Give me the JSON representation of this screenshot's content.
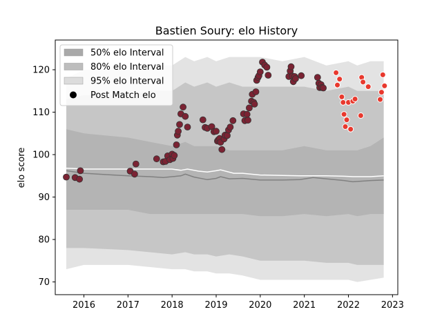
{
  "chart_data": {
    "type": "scatter",
    "title": "Bastien Soury: elo History",
    "xlabel": "",
    "ylabel": "elo score",
    "xlim": [
      2015.35,
      2023.12
    ],
    "ylim": [
      67,
      127
    ],
    "x_ticks": [
      2016,
      2017,
      2018,
      2019,
      2020,
      2021,
      2022,
      2023
    ],
    "x_tick_labels": [
      "2016",
      "2017",
      "2018",
      "2019",
      "2020",
      "2021",
      "2022",
      "2023"
    ],
    "y_ticks": [
      70,
      80,
      90,
      100,
      110,
      120
    ],
    "y_tick_labels": [
      "70",
      "80",
      "90",
      "100",
      "110",
      "120"
    ],
    "grid": false,
    "legend": {
      "placement": "top-left",
      "entries": [
        {
          "label": "50% elo Interval",
          "color": "#a9a9a9",
          "kind": "patch"
        },
        {
          "label": "80% elo Interval",
          "color": "#bdbdbd",
          "kind": "patch"
        },
        {
          "label": "95% elo Interval",
          "color": "#dcdcdc",
          "kind": "patch"
        },
        {
          "label": "Post Match elo",
          "color": "#000000",
          "kind": "marker"
        }
      ]
    },
    "colors": {
      "band_95": "#e3e3e3",
      "band_80": "#c6c6c6",
      "band_50": "#b4b4b4",
      "median_line": "#808080",
      "mean_line": "#ffffff",
      "point_old": "#7b2333",
      "point_recent": "#e8392e"
    },
    "bands": {
      "x": [
        2015.6,
        2016.0,
        2017.0,
        2017.5,
        2018.0,
        2018.3,
        2018.5,
        2018.8,
        2019.0,
        2019.3,
        2019.6,
        2020.0,
        2020.5,
        2021.0,
        2021.5,
        2022.0,
        2022.2,
        2022.5,
        2022.8
      ],
      "p95_upper": [
        118,
        120,
        120,
        121,
        121,
        123,
        122,
        123,
        122,
        123,
        123,
        123,
        122,
        123,
        121,
        122,
        121,
        122,
        122
      ],
      "p80_upper": [
        113,
        114,
        114,
        115,
        115,
        117,
        116,
        117,
        116,
        117,
        116,
        116,
        116,
        116,
        115,
        116,
        115,
        115,
        115
      ],
      "p50_upper": [
        106,
        105,
        104,
        103,
        102,
        103,
        102,
        102,
        102,
        101,
        101,
        101,
        101,
        102,
        101,
        101,
        101,
        102,
        104
      ],
      "p50_lower": [
        87,
        87,
        87,
        86,
        86,
        86,
        86,
        86,
        86,
        86,
        86,
        85.5,
        85.5,
        86,
        85.5,
        86,
        85.5,
        86,
        86
      ],
      "p80_lower": [
        78,
        78,
        77.5,
        77,
        76.5,
        77,
        76.5,
        76.5,
        76,
        76.5,
        76,
        75,
        75,
        75,
        74.5,
        74.5,
        74,
        74,
        74
      ],
      "p95_lower": [
        73,
        74,
        74,
        73.5,
        73,
        73,
        72.5,
        72.5,
        72,
        72,
        71.5,
        70.5,
        70.5,
        70.5,
        70.5,
        70.5,
        70,
        70.5,
        71
      ]
    },
    "median_line": {
      "x": [
        2015.6,
        2016.0,
        2016.5,
        2017.0,
        2017.5,
        2017.8,
        2018.0,
        2018.2,
        2018.3,
        2018.5,
        2018.8,
        2019.0,
        2019.1,
        2019.3,
        2019.6,
        2020.0,
        2020.5,
        2020.9,
        2021.2,
        2021.6,
        2021.9,
        2022.1,
        2022.5,
        2022.8
      ],
      "y": [
        96.2,
        95.6,
        95.3,
        95.0,
        94.8,
        94.6,
        94.8,
        95.0,
        95.4,
        94.7,
        94.1,
        94.4,
        94.8,
        94.3,
        94.4,
        94.0,
        94.0,
        94.1,
        94.6,
        94.2,
        93.9,
        93.6,
        93.9,
        94.0
      ]
    },
    "mean_line": {
      "x": [
        2015.6,
        2015.8,
        2016.0,
        2016.5,
        2017.0,
        2017.5,
        2018.0,
        2018.2,
        2018.35,
        2018.6,
        2018.8,
        2019.0,
        2019.1,
        2019.4,
        2019.6,
        2020.0,
        2020.5,
        2020.9,
        2021.2,
        2021.5,
        2021.9,
        2022.1,
        2022.5,
        2022.8
      ],
      "y": [
        96.8,
        96.7,
        96.6,
        96.6,
        96.6,
        96.6,
        96.6,
        96.3,
        96.6,
        96.1,
        95.9,
        96.2,
        96.4,
        95.6,
        95.6,
        95.2,
        95.1,
        95.0,
        95.0,
        95.0,
        94.9,
        94.8,
        94.8,
        95.0
      ]
    },
    "post_match_points_early": {
      "x": [
        2015.6,
        2015.8,
        2015.9,
        2015.92,
        2017.05,
        2017.15,
        2017.18,
        2017.65,
        2017.8,
        2017.85,
        2017.9,
        2017.95,
        2018.0,
        2018.02,
        2018.05,
        2018.1,
        2018.12,
        2018.14,
        2018.17,
        2018.2,
        2018.25,
        2018.3,
        2018.35,
        2018.7,
        2018.75,
        2018.8,
        2018.9,
        2018.95,
        2019.0,
        2019.03,
        2019.05,
        2019.08,
        2019.1,
        2019.13,
        2019.18,
        2019.2,
        2019.25,
        2019.28,
        2019.32,
        2019.38,
        2019.62,
        2019.65,
        2019.7,
        2019.72,
        2019.75,
        2019.8,
        2019.82,
        2019.85,
        2019.87,
        2019.9,
        2019.92,
        2019.95,
        2019.97,
        2020.0,
        2020.05,
        2020.1,
        2020.15,
        2020.18,
        2020.65,
        2020.68,
        2020.7,
        2020.73,
        2020.75,
        2020.78,
        2020.8,
        2020.93,
        2021.3,
        2021.33,
        2021.35,
        2021.38,
        2021.4,
        2021.43
      ],
      "y": [
        94.7,
        94.6,
        94.2,
        96.2,
        96.1,
        95.4,
        97.8,
        99.0,
        98.3,
        98.4,
        99.7,
        98.8,
        100.1,
        99.1,
        99.8,
        102.3,
        104.6,
        105.5,
        107.1,
        109.6,
        111.2,
        109.0,
        106.5,
        108.2,
        106.4,
        106.2,
        106.6,
        105.4,
        105.5,
        103.2,
        103.5,
        103.8,
        102.9,
        101.2,
        103.7,
        104.6,
        104.5,
        105.8,
        106.5,
        108.0,
        109.6,
        108.0,
        109.5,
        108.1,
        111.0,
        112.6,
        114.2,
        112.3,
        111.9,
        114.8,
        117.5,
        118.2,
        118.6,
        119.5,
        121.8,
        121.1,
        120.6,
        118.7,
        118.4,
        119.7,
        120.7,
        118.5,
        117.2,
        118.4,
        117.9,
        118.6,
        118.2,
        116.8,
        115.8,
        116.5,
        115.8,
        115.7
      ],
      "color": "#7b2333"
    },
    "post_match_points_recent": {
      "x": [
        2021.72,
        2021.75,
        2021.8,
        2021.85,
        2021.88,
        2021.9,
        2021.93,
        2021.96,
        2022.0,
        2022.05,
        2022.1,
        2022.15,
        2022.28,
        2022.3,
        2022.33,
        2022.45,
        2022.72,
        2022.75,
        2022.78,
        2022.82
      ],
      "y": [
        119.3,
        116.4,
        117.8,
        113.6,
        112.3,
        109.5,
        106.6,
        108.2,
        112.3,
        106.0,
        112.6,
        113.1,
        109.2,
        118.2,
        117.1,
        116.0,
        113.0,
        114.7,
        118.8,
        116.2
      ],
      "color": "#e8392e"
    }
  }
}
